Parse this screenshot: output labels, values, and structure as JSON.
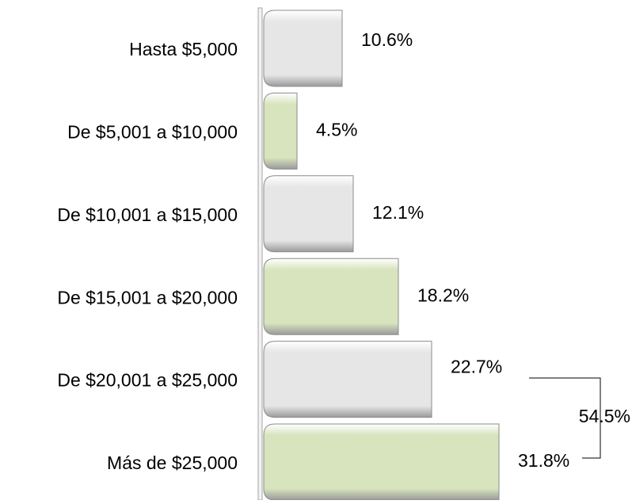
{
  "chart_data": {
    "type": "barh",
    "categories": [
      "Hasta $5,000",
      "De $5,001 a $10,000",
      "De $10,001 a $15,000",
      "De $15,001 a $20,000",
      "De $20,001 a $25,000",
      "Más de $25,000"
    ],
    "values": [
      10.6,
      4.5,
      12.1,
      18.2,
      22.7,
      31.8
    ],
    "value_labels": [
      "10.6%",
      "4.5%",
      "12.1%",
      "18.2%",
      "22.7%",
      "31.8%"
    ],
    "colors": [
      "#e6e6e6",
      "#d7e4bd",
      "#e6e6e6",
      "#d7e4bd",
      "#e6e6e6",
      "#d7e4bd"
    ],
    "annotations": [
      {
        "text": "54.5%"
      }
    ]
  }
}
